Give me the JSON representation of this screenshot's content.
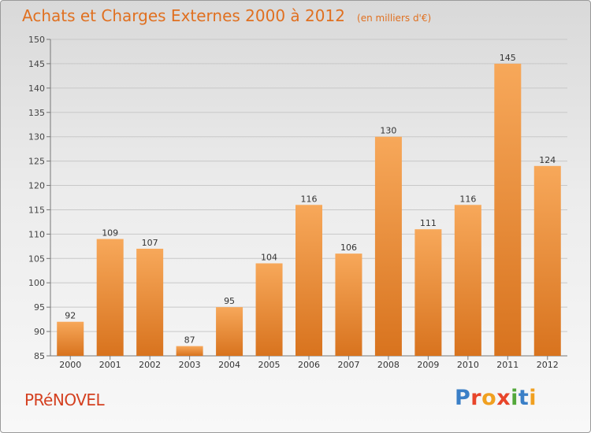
{
  "chart_data": {
    "type": "bar",
    "title": "Achats et Charges Externes 2000 à 2012",
    "unit_label": "(en milliers d'€)",
    "categories": [
      "2000",
      "2001",
      "2002",
      "2003",
      "2004",
      "2005",
      "2006",
      "2007",
      "2008",
      "2009",
      "2010",
      "2011",
      "2012"
    ],
    "values": [
      92,
      109,
      107,
      87,
      95,
      104,
      116,
      106,
      130,
      111,
      116,
      145,
      124
    ],
    "ylim": [
      85,
      150
    ],
    "yticks": [
      85,
      90,
      95,
      100,
      105,
      110,
      115,
      120,
      125,
      130,
      135,
      140,
      145,
      150
    ],
    "grid": true,
    "bar_color_top": "#f7a85a",
    "bar_color_bottom": "#d8731e"
  },
  "footer": {
    "commune": "PRéNOVEL",
    "logo_letters": [
      {
        "ch": "P",
        "color": "#3a7fc7"
      },
      {
        "ch": "r",
        "color": "#e8452a"
      },
      {
        "ch": "o",
        "color": "#f0a020"
      },
      {
        "ch": "x",
        "color": "#e8452a"
      },
      {
        "ch": "i",
        "color": "#53a83a"
      },
      {
        "ch": "t",
        "color": "#3a7fc7"
      },
      {
        "ch": "i",
        "color": "#f0a020"
      }
    ]
  }
}
